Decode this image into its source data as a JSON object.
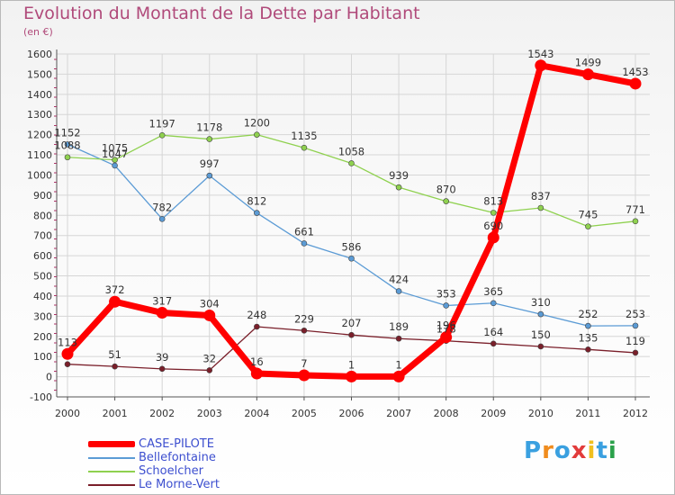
{
  "chart_data": {
    "type": "line",
    "title": "Evolution du Montant de la Dette par Habitant",
    "subtitle": "(en €)",
    "x": [
      "2000",
      "2001",
      "2002",
      "2003",
      "2004",
      "2005",
      "2006",
      "2007",
      "2008",
      "2009",
      "2010",
      "2011",
      "2012"
    ],
    "ylim": [
      -100,
      1600
    ],
    "yticks": [
      "-100",
      "0",
      "100",
      "200",
      "300",
      "400",
      "500",
      "600",
      "700",
      "800",
      "900",
      "1000",
      "1100",
      "1200",
      "1300",
      "1400",
      "1500",
      "1600"
    ],
    "grid": true,
    "legend_position": "bottom-left",
    "series": [
      {
        "name": "CASE-PILOTE",
        "color": "#ff0000",
        "values": [
          113,
          372,
          317,
          304,
          16,
          7,
          1,
          1,
          196,
          690,
          1543,
          1499,
          1453
        ]
      },
      {
        "name": "Bellefontaine",
        "color": "#5b9bd5",
        "values": [
          1152,
          1047,
          782,
          997,
          812,
          661,
          586,
          424,
          353,
          365,
          310,
          252,
          253
        ]
      },
      {
        "name": "Schoelcher",
        "color": "#8fd14f",
        "values": [
          1088,
          1075,
          1197,
          1178,
          1200,
          1135,
          1058,
          939,
          870,
          813,
          837,
          745,
          771
        ]
      },
      {
        "name": "Le Morne-Vert",
        "color": "#7a1f2a",
        "values": [
          62,
          51,
          39,
          32,
          248,
          229,
          207,
          189,
          178,
          164,
          150,
          135,
          119
        ]
      }
    ],
    "data_labels": [
      [
        "113",
        "372",
        "317",
        "304",
        "16",
        "7",
        "1",
        "1",
        "196",
        "690",
        "1543",
        "1499",
        "1453"
      ],
      [
        "1152",
        "1047",
        "782",
        "997",
        "812",
        "661",
        "586",
        "424",
        "353",
        "365",
        "310",
        "252",
        "253"
      ],
      [
        "1088",
        "1075",
        "1197",
        "1178",
        "1200",
        "1135",
        "1058",
        "939",
        "870",
        "813",
        "837",
        "745",
        "771"
      ],
      [
        "",
        "51",
        "39",
        "32",
        "248",
        "229",
        "207",
        "189",
        "178",
        "164",
        "150",
        "135",
        "119"
      ]
    ]
  },
  "legend": {
    "items": [
      "CASE-PILOTE",
      "Bellefontaine",
      "Schoelcher",
      "Le Morne-Vert"
    ]
  },
  "logo": {
    "letters": [
      "P",
      "r",
      "o",
      "x",
      "i",
      "t",
      "i"
    ],
    "colors": [
      "#3aa0e0",
      "#f08c1e",
      "#3aa0e0",
      "#e23b3b",
      "#f0c020",
      "#3aa0e0",
      "#2aa14a"
    ]
  }
}
